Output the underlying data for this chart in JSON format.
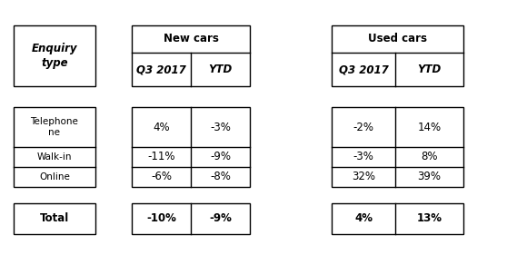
{
  "enquiry_label": "Enquiry\ntype",
  "total_label": "Total",
  "new_cars_header": "New cars",
  "used_cars_header": "Used cars",
  "col_headers": [
    "Q3 2017",
    "YTD"
  ],
  "new_cars_data": [
    [
      "4%",
      "-3%"
    ],
    [
      "-11%",
      "-9%"
    ],
    [
      "-6%",
      "-8%"
    ]
  ],
  "used_cars_data": [
    [
      "-2%",
      "14%"
    ],
    [
      "-3%",
      "8%"
    ],
    [
      "32%",
      "39%"
    ]
  ],
  "new_cars_total": [
    "-10%",
    "-9%"
  ],
  "used_cars_total": [
    "4%",
    "13%"
  ],
  "row_labels": [
    "Telephone\nne",
    "Walk-in",
    "Online"
  ],
  "background": "#ffffff",
  "border_color": "#000000",
  "fontsize": 8.5,
  "fontsize_small": 7.5
}
